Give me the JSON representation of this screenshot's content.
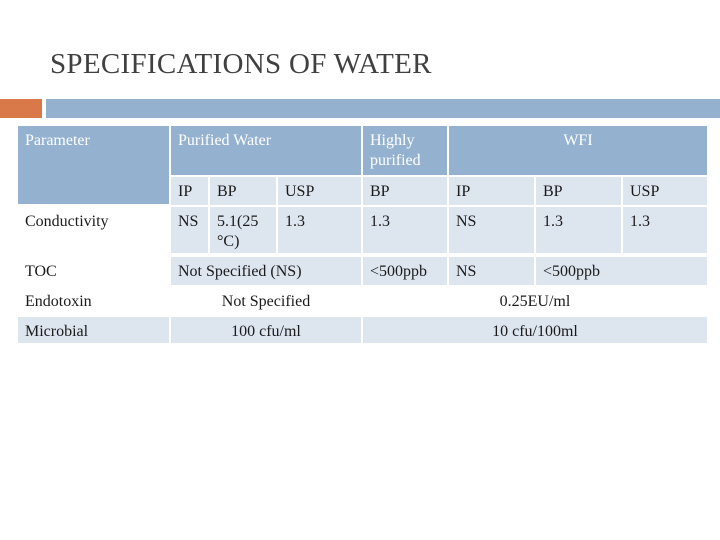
{
  "title": "SPECIFICATIONS OF WATER",
  "header": {
    "parameter": "Parameter",
    "purified_water": "Purified Water",
    "highly_purified": "Highly purified",
    "wfi": "WFI"
  },
  "subheader": {
    "pw_ip": "IP",
    "pw_bp": "BP",
    "pw_usp": "USP",
    "hp_bp": "BP",
    "wfi_ip": "IP",
    "wfi_bp": "BP",
    "wfi_usp": "USP"
  },
  "rows": {
    "conductivity": {
      "label": "Conductivity",
      "pw_ip": "NS",
      "pw_bp": "5.1(25 °C)",
      "pw_usp": "1.3",
      "hp_bp": "1.3",
      "wfi_ip": "NS",
      "wfi_bp": "1.3",
      "wfi_usp": "1.3"
    },
    "toc": {
      "label": "TOC",
      "pw": "Not Specified (NS)",
      "hp_bp": "<500ppb",
      "wfi_ip": "NS",
      "wfi_bp": "<500ppb"
    },
    "endotoxin": {
      "label": "Endotoxin",
      "pw": "Not Specified",
      "hp_wfi": "0.25EU/ml"
    },
    "microbial": {
      "label": "Microbial",
      "pw": "100 cfu/ml",
      "hp_wfi": "10 cfu/100ml"
    }
  }
}
